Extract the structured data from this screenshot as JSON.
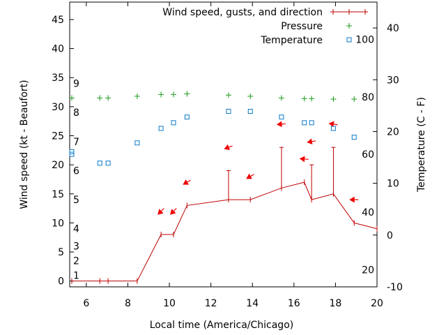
{
  "chart_data": {
    "type": "line",
    "xlabel": "Local time (America/Chicago)",
    "ylabel": "Wind speed (kt - Beaufort)",
    "y2label": "Temperature (C - F)",
    "xlim": [
      5.2,
      20
    ],
    "ylim": [
      -1,
      48
    ],
    "y2lim": [
      -10,
      45
    ],
    "x_ticks": [
      6,
      8,
      10,
      12,
      14,
      16,
      18,
      20
    ],
    "y_ticks": [
      0,
      5,
      10,
      15,
      20,
      25,
      30,
      35,
      40,
      45
    ],
    "y2_ticks": [
      -10,
      0,
      10,
      20,
      30,
      40
    ],
    "beaufort_marks": [
      {
        "label": "1",
        "kt": 1
      },
      {
        "label": "2",
        "kt": 3.5
      },
      {
        "label": "3",
        "kt": 6
      },
      {
        "label": "4",
        "kt": 9
      },
      {
        "label": "5",
        "kt": 14
      },
      {
        "label": "6",
        "kt": 19
      },
      {
        "label": "7",
        "kt": 24
      },
      {
        "label": "8",
        "kt": 29
      },
      {
        "label": "9",
        "kt": 34
      }
    ],
    "fahrenheit_marks": [
      {
        "label": "20",
        "celsius": -6.7
      },
      {
        "label": "40",
        "celsius": 4.4
      },
      {
        "label": "60",
        "celsius": 15.6
      },
      {
        "label": "80",
        "celsius": 26.7
      },
      {
        "label": "100",
        "celsius": 37.8
      }
    ],
    "legend": [
      {
        "label": "Wind speed, gusts, and direction",
        "color": "#c00000",
        "marker": "cross-line"
      },
      {
        "label": "Pressure",
        "color": "#1a9a1a",
        "marker": "plus"
      },
      {
        "label": "Temperature",
        "color": "#0a78c8",
        "marker": "square"
      }
    ],
    "series": [
      {
        "name": "Wind speed",
        "color": "#c00000",
        "axis": "left",
        "x": [
          5.3,
          6.65,
          7.05,
          8.45,
          9.6,
          10.2,
          10.85,
          12.85,
          13.9,
          15.4,
          16.5,
          16.85,
          17.9,
          18.9,
          20.0
        ],
        "values": [
          0,
          0,
          0,
          0,
          8,
          8,
          13,
          14,
          14,
          16,
          17,
          14,
          15,
          10,
          9
        ]
      },
      {
        "name": "Gusts",
        "color": "#c00000",
        "axis": "left",
        "x": [
          12.85,
          15.4,
          16.85,
          17.9
        ],
        "values": [
          19,
          23,
          20,
          23
        ]
      },
      {
        "name": "Wind direction",
        "color": "#ee0000",
        "axis": "left",
        "x": [
          9.6,
          10.2,
          10.85,
          12.85,
          13.9,
          15.4,
          16.5,
          16.85,
          17.9,
          18.9
        ],
        "kt_position": [
          12,
          12,
          17,
          23,
          18,
          27,
          21,
          24,
          27,
          14
        ],
        "direction_deg": [
          45,
          45,
          60,
          70,
          60,
          85,
          95,
          80,
          100,
          90
        ]
      },
      {
        "name": "Pressure",
        "color": "#1a9a1a",
        "axis": "left",
        "x": [
          5.3,
          6.65,
          7.05,
          8.45,
          9.6,
          10.2,
          10.85,
          12.85,
          13.9,
          15.4,
          16.5,
          16.85,
          17.9,
          18.9
        ],
        "values": [
          31.5,
          31.5,
          31.5,
          31.8,
          32.1,
          32.1,
          32.2,
          32.0,
          31.8,
          31.5,
          31.4,
          31.4,
          31.3,
          31.3
        ]
      },
      {
        "name": "Temperature",
        "color": "#0a78c8",
        "axis": "right",
        "x": [
          5.3,
          5.3,
          6.65,
          7.05,
          8.45,
          9.6,
          10.2,
          10.85,
          12.85,
          13.9,
          15.4,
          16.5,
          16.85,
          17.9,
          18.9
        ],
        "values": [
          16.1,
          15.6,
          13.9,
          13.9,
          17.8,
          20.6,
          21.7,
          22.8,
          23.9,
          23.9,
          22.8,
          21.7,
          21.7,
          20.6,
          18.9
        ]
      }
    ]
  }
}
